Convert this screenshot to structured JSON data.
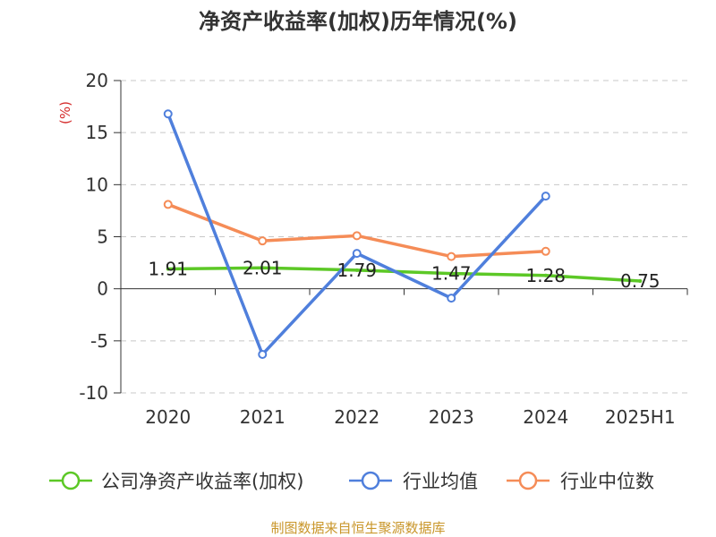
{
  "chart_data": {
    "type": "line",
    "title": "净资产收益率(加权)历年情况(%)",
    "ylabel": "(%)",
    "ylim": [
      -10,
      20
    ],
    "yticks": [
      20,
      15,
      10,
      5,
      0,
      -5,
      -10
    ],
    "categories": [
      "2020",
      "2021",
      "2022",
      "2023",
      "2024",
      "2025H1"
    ],
    "grid": true,
    "legend_position": "bottom",
    "series": [
      {
        "name": "公司净资产收益率(加权)",
        "color": "#5cc826",
        "values": [
          1.91,
          2.01,
          1.79,
          1.47,
          1.28,
          0.75
        ],
        "labels": [
          "1.91",
          "2.01",
          "1.79",
          "1.47",
          "1.28",
          "0.75"
        ]
      },
      {
        "name": "行业均值",
        "color": "#4f7fdc",
        "values": [
          16.8,
          -6.3,
          3.4,
          -0.9,
          8.9,
          null
        ]
      },
      {
        "name": "行业中位数",
        "color": "#f58c57",
        "values": [
          8.1,
          4.6,
          5.1,
          3.1,
          3.6,
          null
        ]
      }
    ]
  },
  "source": "制图数据来自恒生聚源数据库",
  "colors": {
    "unit": "#d42a2a",
    "source": "#c9962a",
    "grid": "#c8c8c8",
    "axis": "#333333"
  }
}
